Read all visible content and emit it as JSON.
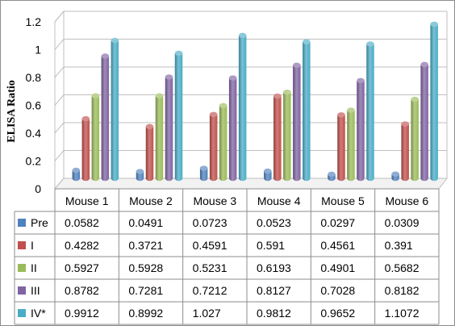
{
  "chart_data": {
    "type": "bar",
    "ylabel": "ELISA Ratio",
    "ylim": [
      0,
      1.2
    ],
    "yticks": [
      "0",
      "0.2",
      "0.4",
      "0.6",
      "0.8",
      "1",
      "1.2"
    ],
    "categories": [
      "Mouse 1",
      "Mouse 2",
      "Mouse 3",
      "Mouse 4",
      "Mouse 5",
      "Mouse 6"
    ],
    "grid": true,
    "legend": "data-table-below",
    "series": [
      {
        "name": "Pre",
        "color": "#4F81BD",
        "labels": [
          "0.0582",
          "0.0491",
          "0.0723",
          "0.0523",
          "0.0297",
          "0.0309"
        ],
        "values": [
          0.0582,
          0.0491,
          0.0723,
          0.0523,
          0.0297,
          0.0309
        ]
      },
      {
        "name": "I",
        "color": "#C0504D",
        "labels": [
          "0.4282",
          "0.3721",
          "0.4591",
          "0.591",
          "0.4561",
          "0.391"
        ],
        "values": [
          0.4282,
          0.3721,
          0.4591,
          0.591,
          0.4561,
          0.391
        ]
      },
      {
        "name": "II",
        "color": "#9BBB59",
        "labels": [
          "0.5927",
          "0.5928",
          "0.5231",
          "0.6193",
          "0.4901",
          "0.5682"
        ],
        "values": [
          0.5927,
          0.5928,
          0.5231,
          0.6193,
          0.4901,
          0.5682
        ]
      },
      {
        "name": "III",
        "color": "#8064A2",
        "labels": [
          "0.8782",
          "0.7281",
          "0.7212",
          "0.8127",
          "0.7028",
          "0.8182"
        ],
        "values": [
          0.8782,
          0.7281,
          0.7212,
          0.8127,
          0.7028,
          0.8182
        ]
      },
      {
        "name": "IV*",
        "color": "#4BACC6",
        "labels": [
          "0.9912",
          "0.8992",
          "1.027",
          "0.9812",
          "0.9652",
          "1.1072"
        ],
        "values": [
          0.9912,
          0.8992,
          1.027,
          0.9812,
          0.9652,
          1.1072
        ]
      }
    ]
  }
}
